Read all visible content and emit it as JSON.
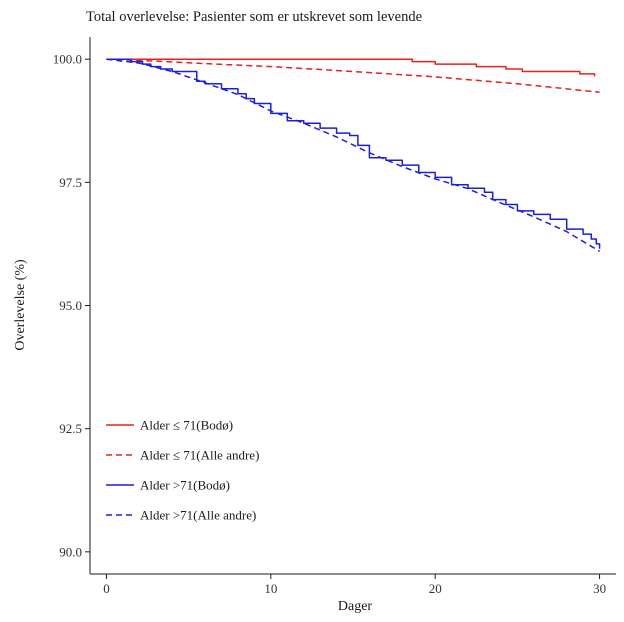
{
  "chart_data": {
    "type": "line",
    "title": "Total overlevelse: Pasienter som er utskrevet som levende",
    "xlabel": "Dager",
    "ylabel": "Overlevelse (%)",
    "xlim": [
      -1,
      31
    ],
    "ylim": [
      89.55,
      100.45
    ],
    "xticks": [
      0,
      10,
      20,
      30
    ],
    "yticks": [
      90.0,
      92.5,
      95.0,
      97.5,
      100.0
    ],
    "ytick_labels": [
      "90.0",
      "92.5",
      "95.0",
      "97.5",
      "100.0"
    ],
    "grid": false,
    "legend_position": "bottom-left",
    "series": [
      {
        "name": "Alder ≤ 71(Bodø)",
        "color": "#e8201f",
        "dash": "solid",
        "step": true,
        "x": [
          0,
          18.6,
          20.0,
          22.5,
          24.3,
          25.3,
          28.8,
          29.7
        ],
        "y": [
          100.0,
          99.95,
          99.9,
          99.85,
          99.8,
          99.75,
          99.7,
          99.65
        ]
      },
      {
        "name": "Alder ≤ 71(Alle andre)",
        "color": "#e8201f",
        "dash": "dashed",
        "step": false,
        "x": [
          0,
          3,
          6,
          10,
          15,
          20,
          25,
          30
        ],
        "y": [
          100.0,
          99.96,
          99.91,
          99.85,
          99.75,
          99.64,
          99.5,
          99.33
        ]
      },
      {
        "name": "Alder >71(Bodø)",
        "color": "#1a1ee0",
        "dash": "solid",
        "step": true,
        "x": [
          0,
          1.5,
          2.2,
          2.7,
          3.3,
          4.0,
          5.5,
          6.0,
          7.0,
          8.0,
          8.5,
          9.0,
          10.0,
          11.0,
          12.0,
          13.0,
          14.0,
          14.8,
          15.3,
          16.0,
          17.0,
          18.0,
          19.0,
          20.0,
          21.0,
          22.0,
          23.0,
          23.5,
          24.3,
          25.0,
          26.0,
          27.0,
          28.0,
          29.0,
          29.5,
          29.8,
          30.0
        ],
        "y": [
          100.0,
          99.95,
          99.9,
          99.85,
          99.8,
          99.75,
          99.55,
          99.5,
          99.4,
          99.3,
          99.2,
          99.1,
          98.9,
          98.75,
          98.7,
          98.6,
          98.5,
          98.45,
          98.25,
          98.0,
          97.95,
          97.85,
          97.7,
          97.6,
          97.45,
          97.38,
          97.3,
          97.15,
          97.05,
          96.92,
          96.85,
          96.75,
          96.55,
          96.45,
          96.35,
          96.25,
          96.15
        ]
      },
      {
        "name": "Alder >71(Alle andre)",
        "color": "#1a1ee0",
        "dash": "dashed",
        "step": false,
        "x": [
          0,
          2,
          4,
          6,
          8,
          10,
          12,
          14,
          16,
          18,
          20,
          22,
          24,
          26,
          28,
          30
        ],
        "y": [
          100.0,
          99.92,
          99.75,
          99.52,
          99.28,
          98.95,
          98.7,
          98.42,
          98.1,
          97.82,
          97.57,
          97.37,
          97.08,
          96.8,
          96.5,
          96.1
        ]
      }
    ]
  }
}
